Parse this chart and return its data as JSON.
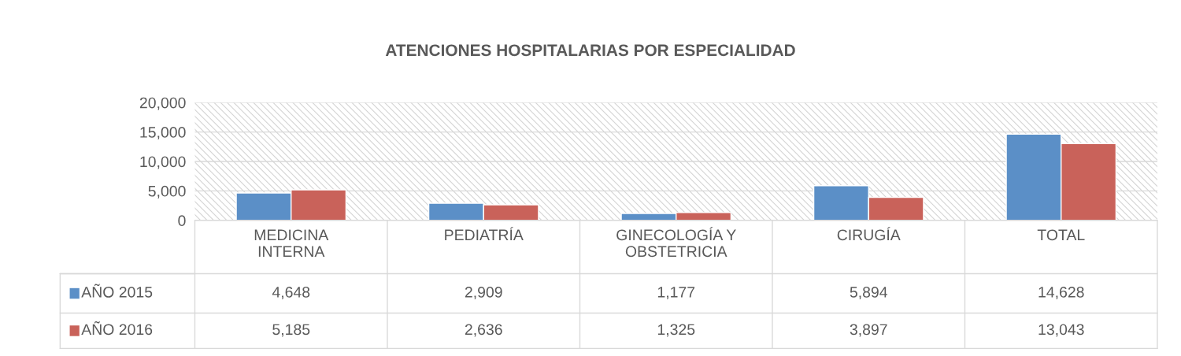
{
  "chart_data": {
    "type": "bar",
    "title": "ATENCIONES HOSPITALARIAS POR ESPECIALIDAD",
    "categories": [
      "MEDICINA INTERNA",
      "PEDIATRÍA",
      "GINECOLOGÍA Y OBSTETRICIA",
      "CIRUGÍA",
      "TOTAL"
    ],
    "series": [
      {
        "name": "AÑO 2015",
        "color": "#5b8fc7",
        "values": [
          4648,
          2909,
          1177,
          5894,
          14628
        ],
        "value_labels": [
          "4,648",
          "2,909",
          "1,177",
          "5,894",
          "14,628"
        ]
      },
      {
        "name": "AÑO 2016",
        "color": "#c9625a",
        "values": [
          5185,
          2636,
          1325,
          3897,
          13043
        ],
        "value_labels": [
          "5,185",
          "2,636",
          "1,325",
          "3,897",
          "13,043"
        ]
      }
    ],
    "ylim": [
      0,
      20000
    ],
    "yticks": [
      {
        "value": 0,
        "label": "0"
      },
      {
        "value": 5000,
        "label": "5,000"
      },
      {
        "value": 10000,
        "label": "10,000"
      },
      {
        "value": 15000,
        "label": "15,000"
      },
      {
        "value": 20000,
        "label": "20,000"
      }
    ],
    "grid": "y",
    "legend": "bottom"
  }
}
